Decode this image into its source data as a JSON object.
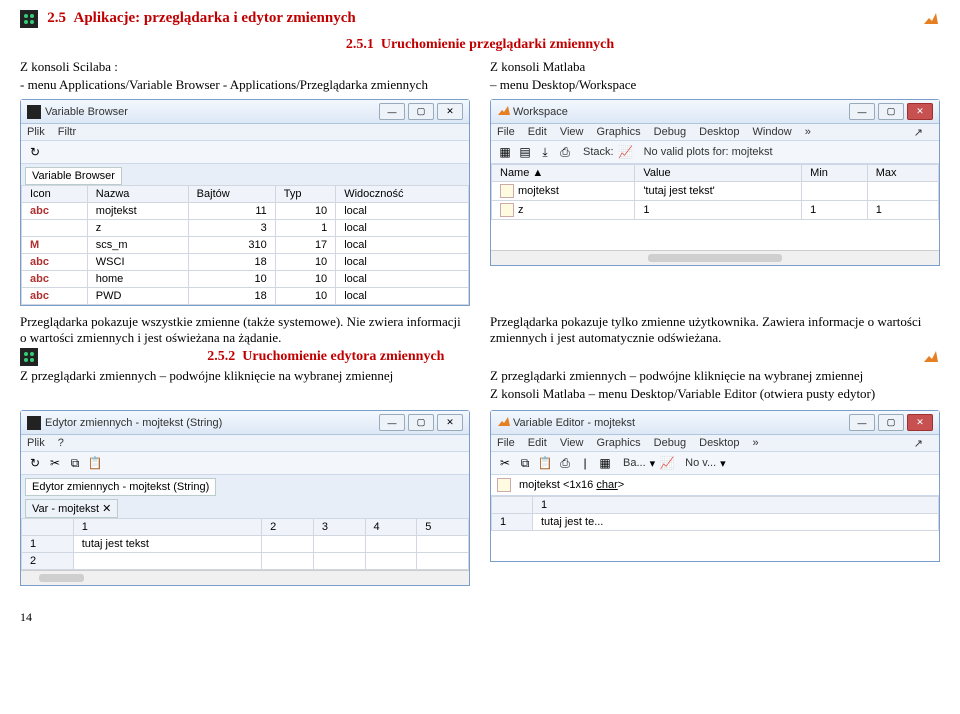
{
  "section": {
    "num": "2.5",
    "title": "Aplikacje: przeglądarka i edytor zmiennych",
    "sub1_num": "2.5.1",
    "sub1_title": "Uruchomienie przeglądarki zmiennych",
    "sub2_num": "2.5.2",
    "sub2_title": "Uruchomienie edytora zmiennych"
  },
  "left": {
    "intro1": "Z konsoli Scilaba :",
    "intro2": "- menu Applications/Variable Browser - Applications/Przeglądarka zmiennych",
    "desc": "Przeglądarka pokazuje wszystkie zmienne (także systemowe). Nie zwiera informacji o wartości zmiennych i jest oświeżana na żądanie.",
    "desc2": "Z przeglądarki zmiennych – podwójne kliknięcie na wybranej zmiennej"
  },
  "right": {
    "intro1": "Z konsoli Matlaba",
    "intro2": "– menu Desktop/Workspace",
    "desc": "Przeglądarka pokazuje tylko zmienne użytkownika. Zawiera informacje o wartości zmiennych i jest automatycznie odświeżana.",
    "desc2a": "Z przeglądarki zmiennych – podwójne kliknięcie na wybranej zmiennej",
    "desc2b": "Z konsoli Matlaba – menu Desktop/Variable Editor (otwiera pusty edytor)"
  },
  "varBrowser": {
    "title": "Variable Browser",
    "menu": [
      "Plik",
      "Filtr"
    ],
    "tab": "Variable Browser",
    "cols": [
      "Icon",
      "Nazwa",
      "Bajtów",
      "Typ",
      "Widoczność"
    ],
    "rows": [
      {
        "icon": "abc",
        "name": "mojtekst",
        "bytes": "11",
        "type": "10",
        "vis": "local",
        "hl": true
      },
      {
        "icon": "",
        "name": "z",
        "bytes": "3",
        "type": "1",
        "vis": "local"
      },
      {
        "icon": "M",
        "name": "scs_m",
        "bytes": "310",
        "type": "17",
        "vis": "local"
      },
      {
        "icon": "abc",
        "name": "WSCI",
        "bytes": "18",
        "type": "10",
        "vis": "local"
      },
      {
        "icon": "abc",
        "name": "home",
        "bytes": "10",
        "type": "10",
        "vis": "local"
      },
      {
        "icon": "abc",
        "name": "PWD",
        "bytes": "18",
        "type": "10",
        "vis": "local"
      }
    ]
  },
  "workspace": {
    "title": "Workspace",
    "menu": [
      "File",
      "Edit",
      "View",
      "Graphics",
      "Debug",
      "Desktop",
      "Window"
    ],
    "stack": "Stack:",
    "noplots": "No valid plots for: mojtekst",
    "cols": [
      "Name",
      "Value",
      "Min",
      "Max"
    ],
    "rows": [
      {
        "name": "mojtekst",
        "value": "'tutaj jest tekst'",
        "min": "",
        "max": ""
      },
      {
        "name": "z",
        "value": "1",
        "min": "1",
        "max": "1"
      }
    ]
  },
  "scilEditor": {
    "title": "Edytor zmiennych - mojtekst  (String)",
    "menu": [
      "Plik",
      "?"
    ],
    "tab": "Edytor zmiennych - mojtekst  (String)",
    "subtab": "Var - mojtekst",
    "cols": [
      "",
      "1",
      "2",
      "3",
      "4",
      "5"
    ],
    "rows": [
      {
        "r": "1",
        "v": "tutaj jest tekst"
      },
      {
        "r": "2",
        "v": ""
      }
    ]
  },
  "matEditor": {
    "title": "Variable Editor - mojtekst",
    "menu": [
      "File",
      "Edit",
      "View",
      "Graphics",
      "Debug",
      "Desktop"
    ],
    "baseLbl": "Ba...",
    "novLbl": "No v...",
    "varinfo": "mojtekst <1x16 char>",
    "cols": [
      "",
      "1"
    ],
    "rows": [
      {
        "r": "1",
        "v": "tutaj jest te..."
      }
    ]
  },
  "page": "14",
  "colors": {
    "hl": "#c9d8ef"
  }
}
